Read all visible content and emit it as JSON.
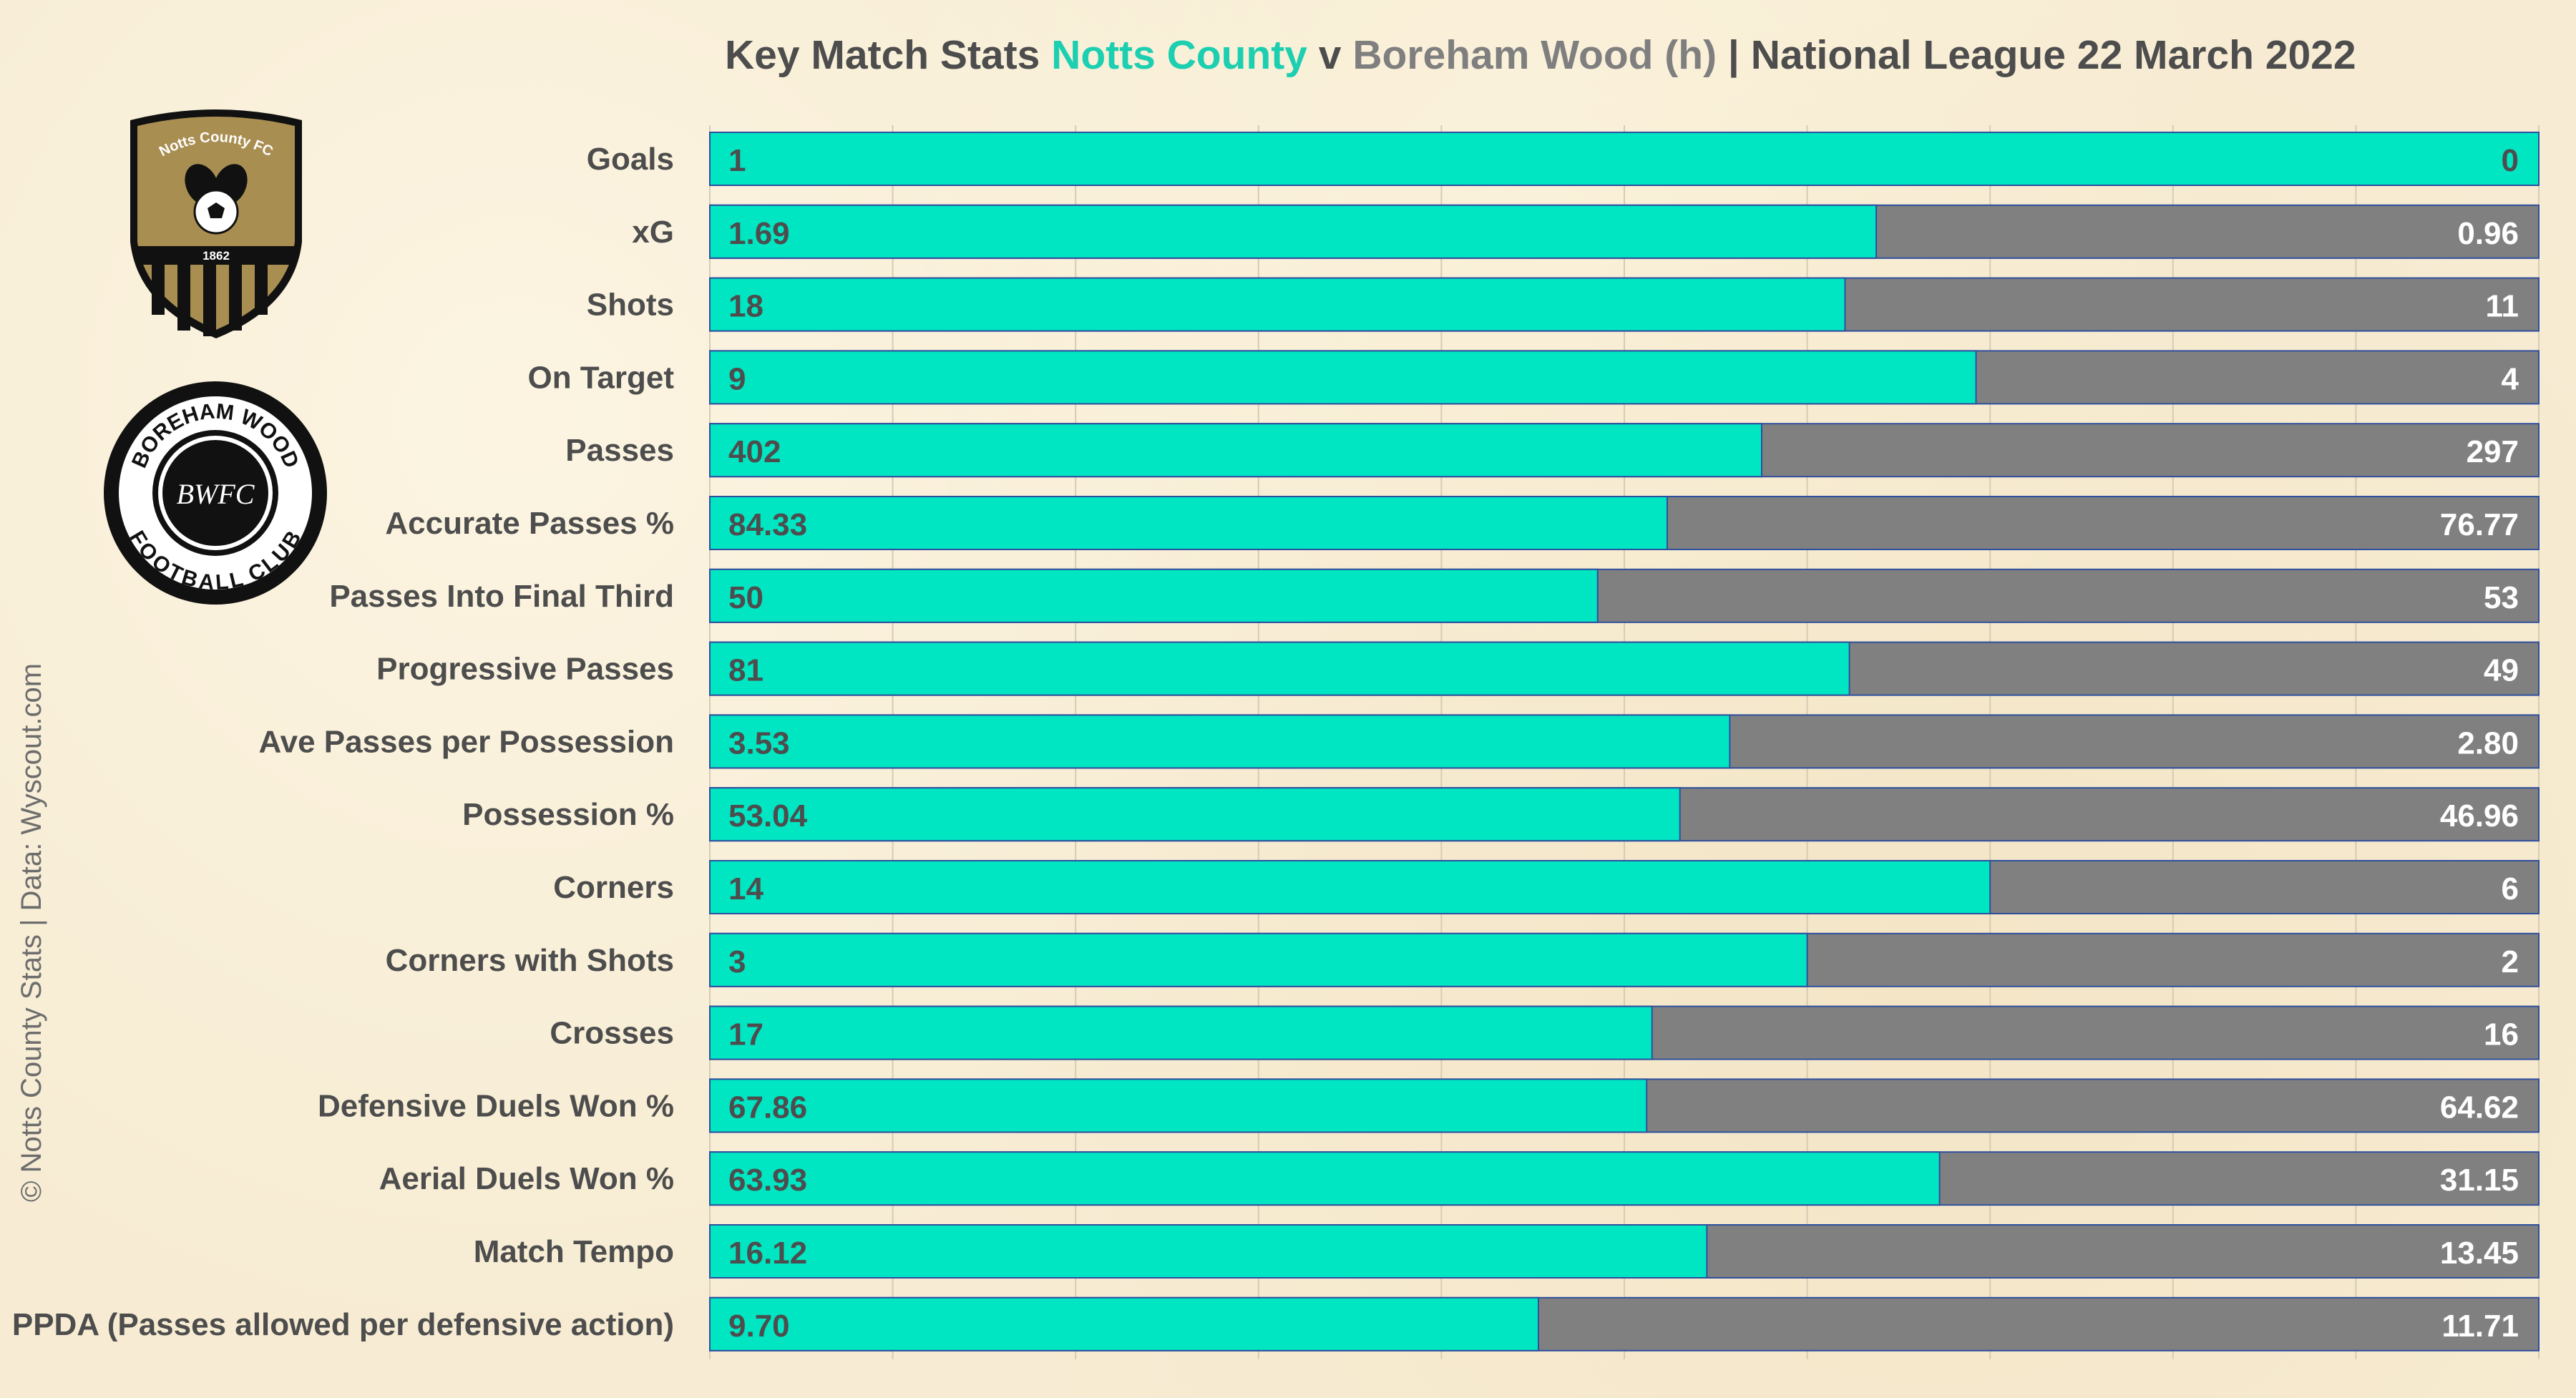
{
  "title": {
    "prefix": "Key Match Stats",
    "home_team": "Notts County",
    "connector": "v",
    "away_team": "Boreham Wood (h)",
    "suffix": "| National League 22 March 2022"
  },
  "credit": "© Notts County Stats | Data: Wyscout.com",
  "logos": {
    "notts": {
      "name_text": "Notts County FC",
      "year": "1862"
    },
    "boreham": {
      "ring_top": "BOREHAM WOOD",
      "ring_bottom": "FOOTBALL CLUB",
      "monogram": "BWFC"
    }
  },
  "colors": {
    "home": "#00e6c3",
    "away": "#808080",
    "bar_border": "#2e4f9e",
    "text": "#4d4d4d",
    "away_value_text": "#ffffff"
  },
  "chart_data": {
    "type": "bar",
    "orientation": "horizontal",
    "stacked": "100%",
    "categories": [
      "Goals",
      "xG",
      "Shots",
      "On Target",
      "Passes",
      "Accurate Passes %",
      "Passes Into Final Third",
      "Progressive Passes",
      "Ave Passes per Possession",
      "Possession %",
      "Corners",
      "Corners with Shots",
      "Crosses",
      "Defensive Duels Won %",
      "Aerial Duels Won %",
      "Match Tempo",
      "PPDA (Passes allowed per defensive action)"
    ],
    "series": [
      {
        "name": "Notts County",
        "values": [
          1,
          1.69,
          18,
          9,
          402,
          84.33,
          50,
          81,
          3.53,
          53.04,
          14,
          3,
          17,
          67.86,
          63.93,
          16.12,
          9.7
        ],
        "labels": [
          "1",
          "1.69",
          "18",
          "9",
          "402",
          "84.33",
          "50",
          "81",
          "3.53",
          "53.04",
          "14",
          "3",
          "17",
          "67.86",
          "63.93",
          "16.12",
          "9.70"
        ]
      },
      {
        "name": "Boreham Wood",
        "values": [
          0,
          0.96,
          11,
          4,
          297,
          76.77,
          53,
          49,
          2.8,
          46.96,
          6,
          2,
          16,
          64.62,
          31.15,
          13.45,
          11.71
        ],
        "labels": [
          "0",
          "0.96",
          "11",
          "4",
          "297",
          "76.77",
          "53",
          "49",
          "2.80",
          "46.96",
          "6",
          "2",
          "16",
          "64.62",
          "31.15",
          "13.45",
          "11.71"
        ]
      }
    ],
    "xlim": [
      0,
      1
    ],
    "grid": "vertical",
    "legend": "none"
  }
}
